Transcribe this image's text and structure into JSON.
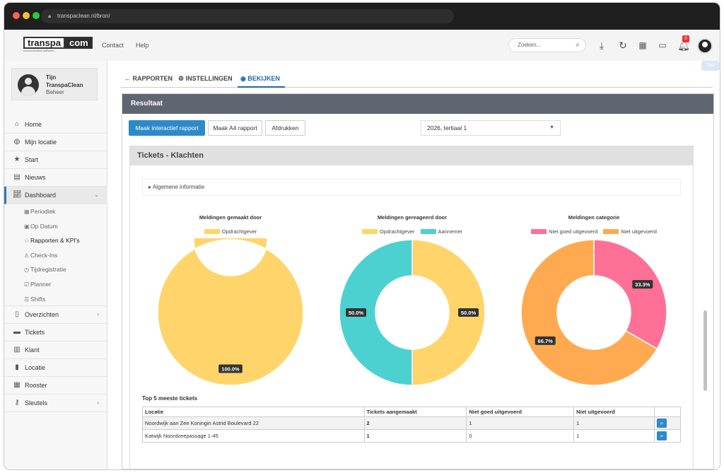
{
  "browser": {
    "url": "transpaclean.nl/bron/",
    "colors": {
      "close": "#ff5f57",
      "minimize": "#febc2e",
      "maximize": "#28c840"
    }
  },
  "header": {
    "logo_left": "transpa",
    "logo_right": "com",
    "logo_tagline": "communication software",
    "nav": [
      "Contact",
      "Help"
    ],
    "search_placeholder": "Zoeken...",
    "notification_count": "0",
    "icons": [
      "download-icon",
      "refresh-icon",
      "qr-icon",
      "id-card-icon",
      "bell-icon",
      "avatar"
    ]
  },
  "user": {
    "first_name": "Tijn",
    "company": "TranspaClean",
    "role": "Beheer"
  },
  "sidebar": {
    "items": [
      {
        "label": "Home",
        "icon": "home-icon"
      },
      {
        "label": "Mijn locatie",
        "icon": "globe-icon"
      },
      {
        "label": "Start",
        "icon": "star-icon"
      },
      {
        "label": "Nieuws",
        "icon": "news-icon"
      },
      {
        "label": "Dashboard",
        "icon": "chart-icon",
        "active": true
      }
    ],
    "sub_items": [
      {
        "label": "Periodiek",
        "icon": "calendar-icon"
      },
      {
        "label": "Op Datum",
        "icon": "calendar-day-icon"
      },
      {
        "label": "Rapporten & KPI's",
        "icon": "star-half-icon",
        "current": true
      },
      {
        "label": "Check-Ins",
        "icon": "person-icon"
      },
      {
        "label": "Tijdregistratie",
        "icon": "clock-icon"
      },
      {
        "label": "Planner",
        "icon": "calendar-check-icon"
      },
      {
        "label": "Shifts",
        "icon": "list-icon"
      }
    ],
    "items_after": [
      {
        "label": "Overzichten",
        "icon": "document-icon",
        "chevron": true
      },
      {
        "label": "Tickets",
        "icon": "comment-icon"
      },
      {
        "label": "Klant",
        "icon": "building-icon"
      },
      {
        "label": "Locatie",
        "icon": "office-icon"
      },
      {
        "label": "Rooster",
        "icon": "calendar-icon"
      },
      {
        "label": "Sleutels",
        "icon": "key-icon",
        "chevron": true
      }
    ]
  },
  "tabs": [
    {
      "label": "RAPPORTEN",
      "icon": "arrow-left-icon"
    },
    {
      "label": "INSTELLINGEN",
      "icon": "gear-icon"
    },
    {
      "label": "BEKIJKEN",
      "icon": "eye-icon",
      "active": true
    }
  ],
  "extra_button": "Test",
  "panel": {
    "title": "Resultaat",
    "buttons": {
      "interactive": "Maak interactief rapport",
      "a4": "Maak A4 rapport",
      "print": "Afdrukken"
    },
    "period": "2026, tertiaal 1",
    "section_title": "Tickets - Klachten",
    "accordion": "Algemene informatie"
  },
  "chart_data": [
    {
      "type": "pie",
      "title": "Meldingen gemaakt door",
      "categories": [
        "Opdrachtgever"
      ],
      "values": [
        100.0
      ],
      "labels": [
        "100.0%"
      ],
      "colors": [
        "#ffd56b"
      ]
    },
    {
      "type": "pie",
      "title": "Meldingen gereageerd door",
      "categories": [
        "Opdrachtgever",
        "Aannemer"
      ],
      "values": [
        50.0,
        50.0
      ],
      "labels": [
        "50.0%",
        "50.0%"
      ],
      "colors": [
        "#ffd56b",
        "#4dd0d0"
      ]
    },
    {
      "type": "pie",
      "title": "Meldingen categorie",
      "categories": [
        "Niet goed uitgevoerd",
        "Niet uitgevoerd"
      ],
      "values": [
        33.3,
        66.7
      ],
      "labels": [
        "33.3%",
        "66.7%"
      ],
      "colors": [
        "#ff7096",
        "#ffaa50"
      ]
    }
  ],
  "table": {
    "title": "Top 5 meeste tickets",
    "headers": [
      "Locatie",
      "Tickets aangemaakt",
      "Niet goed uitgevoerd",
      "Niet uitgevoerd",
      ""
    ],
    "rows": [
      [
        "Noordwijk aan Zee Koningin Astrid Boulevard 22",
        "2",
        "1",
        "1"
      ],
      [
        "Katwijk Noordzeepassage 1-45",
        "1",
        "0",
        "1"
      ]
    ]
  },
  "colors": {
    "accent": "#2d8ac9",
    "panel_header": "#5f6672",
    "tab_active": "#1e6aa8"
  }
}
